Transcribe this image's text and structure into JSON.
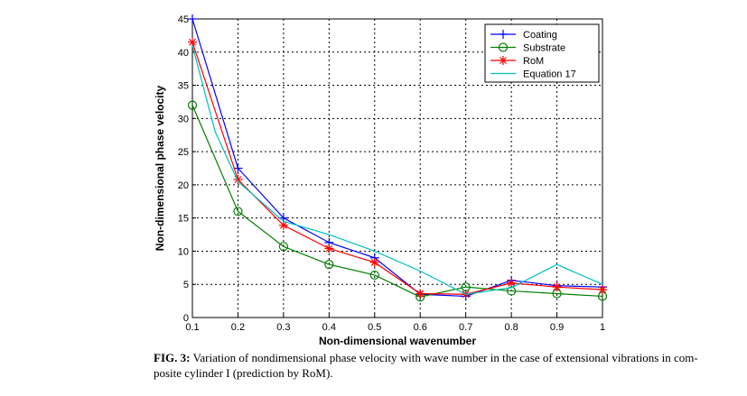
{
  "caption": {
    "label": "FIG. 3:",
    "text": " Variation of nondimensional phase velocity with wave number in the case of extensional vibrations in com-posite cylinder I (prediction by RoM)."
  },
  "chart_data": {
    "type": "line",
    "xlabel": "Non-dimensional wavenumber",
    "ylabel": "Non-dimensional phase velocity",
    "xlim": [
      0.1,
      1
    ],
    "ylim": [
      0,
      45
    ],
    "xticks": [
      0.1,
      0.2,
      0.3,
      0.4,
      0.5,
      0.6,
      0.7,
      0.8,
      0.9,
      1
    ],
    "xtick_labels": [
      "0.1",
      "0.2",
      "0.3",
      "0.4",
      "0.5",
      "0.6",
      "0.7",
      "0.8",
      "0.9",
      "1"
    ],
    "yticks": [
      0,
      5,
      10,
      15,
      20,
      25,
      30,
      35,
      40,
      45
    ],
    "ytick_labels": [
      "0",
      "5",
      "10",
      "15",
      "20",
      "25",
      "30",
      "35",
      "40",
      "45"
    ],
    "grid": true,
    "legend_position": "top-right",
    "x": [
      0.1,
      0.2,
      0.3,
      0.4,
      0.5,
      0.6,
      0.7,
      0.8,
      0.9,
      1
    ],
    "series": [
      {
        "name": "Coating",
        "color": "#0000ff",
        "marker": "plus",
        "values": [
          45,
          22.5,
          15,
          11.3,
          9,
          3.5,
          3.2,
          5.6,
          4.8,
          4.6
        ]
      },
      {
        "name": "Substrate",
        "color": "#008000",
        "marker": "circle",
        "values": [
          32,
          16,
          10.7,
          8,
          6.4,
          3.1,
          4.6,
          4.0,
          3.6,
          3.2
        ]
      },
      {
        "name": "RoM",
        "color": "#ff0000",
        "marker": "star",
        "values": [
          41.5,
          20.8,
          13.9,
          10.4,
          8.3,
          3.6,
          3.5,
          5.2,
          4.6,
          4.2
        ]
      },
      {
        "name": "Equation 17",
        "color": "#00bfbf",
        "marker": "none",
        "x": [
          0.1,
          0.15,
          0.2,
          0.3,
          0.4,
          0.5,
          0.6,
          0.7,
          0.8,
          0.9,
          1
        ],
        "values": [
          41,
          28,
          20.5,
          14.5,
          12.5,
          10,
          7,
          3.5,
          4.5,
          8,
          5
        ]
      }
    ]
  }
}
